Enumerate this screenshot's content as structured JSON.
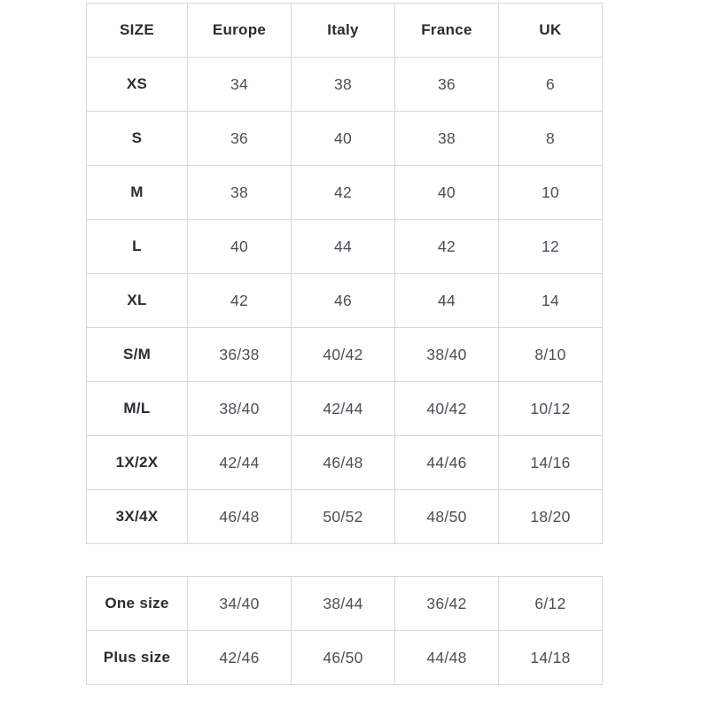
{
  "page": {
    "background": "#ffffff"
  },
  "colors": {
    "border": "#d8d8d8",
    "header_text": "#2b2b33",
    "value_text": "#4e4e58"
  },
  "chart_data": [
    {
      "type": "table",
      "name": "size-conversion-table",
      "has_header": true,
      "columns": [
        "SIZE",
        "Europe",
        "Italy",
        "France",
        "UK"
      ],
      "rows": [
        [
          "XS",
          "34",
          "38",
          "36",
          "6"
        ],
        [
          "S",
          "36",
          "40",
          "38",
          "8"
        ],
        [
          "M",
          "38",
          "42",
          "40",
          "10"
        ],
        [
          "L",
          "40",
          "44",
          "42",
          "12"
        ],
        [
          "XL",
          "42",
          "46",
          "44",
          "14"
        ],
        [
          "S/M",
          "36/38",
          "40/42",
          "38/40",
          "8/10"
        ],
        [
          "M/L",
          "38/40",
          "42/44",
          "40/42",
          "10/12"
        ],
        [
          "1X/2X",
          "42/44",
          "46/48",
          "44/46",
          "14/16"
        ],
        [
          "3X/4X",
          "46/48",
          "50/52",
          "48/50",
          "18/20"
        ]
      ]
    },
    {
      "type": "table",
      "name": "special-sizes-table",
      "has_header": false,
      "columns": [
        "",
        "Europe",
        "Italy",
        "France",
        "UK"
      ],
      "rows": [
        [
          "One size",
          "34/40",
          "38/44",
          "36/42",
          "6/12"
        ],
        [
          "Plus size",
          "42/46",
          "46/50",
          "44/48",
          "14/18"
        ]
      ]
    }
  ]
}
